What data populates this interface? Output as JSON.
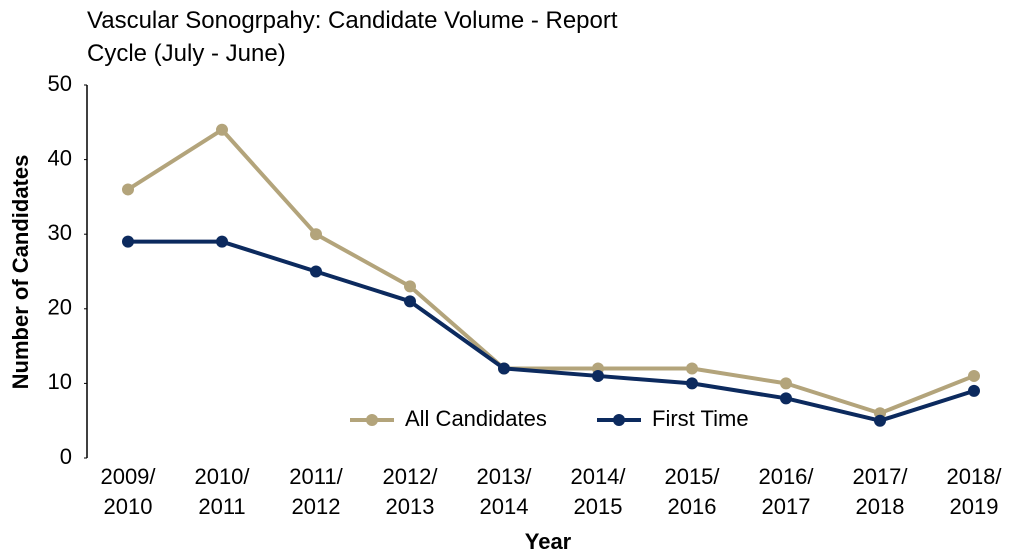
{
  "chart_data": {
    "type": "line",
    "title": "Vascular Sonogrpahy: Candidate Volume - Report Cycle (July - June)",
    "x_label": "Year",
    "y_label": "Number of Candidates",
    "categories": [
      "2009/2010",
      "2010/2011",
      "2011/2012",
      "2012/2013",
      "2013/2014",
      "2014/2015",
      "2015/2016",
      "2016/2017",
      "2017/2018",
      "2018/2019"
    ],
    "series": [
      {
        "name": "All Candidates",
        "color": "#b3a47b",
        "values": [
          36,
          44,
          30,
          23,
          12,
          12,
          12,
          10,
          6,
          11
        ]
      },
      {
        "name": "First Time",
        "color": "#0c2a5e",
        "values": [
          29,
          29,
          25,
          21,
          12,
          11,
          10,
          8,
          5,
          9
        ]
      }
    ],
    "ylim": [
      0,
      50
    ],
    "yticks": [
      0,
      10,
      20,
      30,
      40,
      50
    ],
    "grid": false,
    "legend": "bottom"
  }
}
